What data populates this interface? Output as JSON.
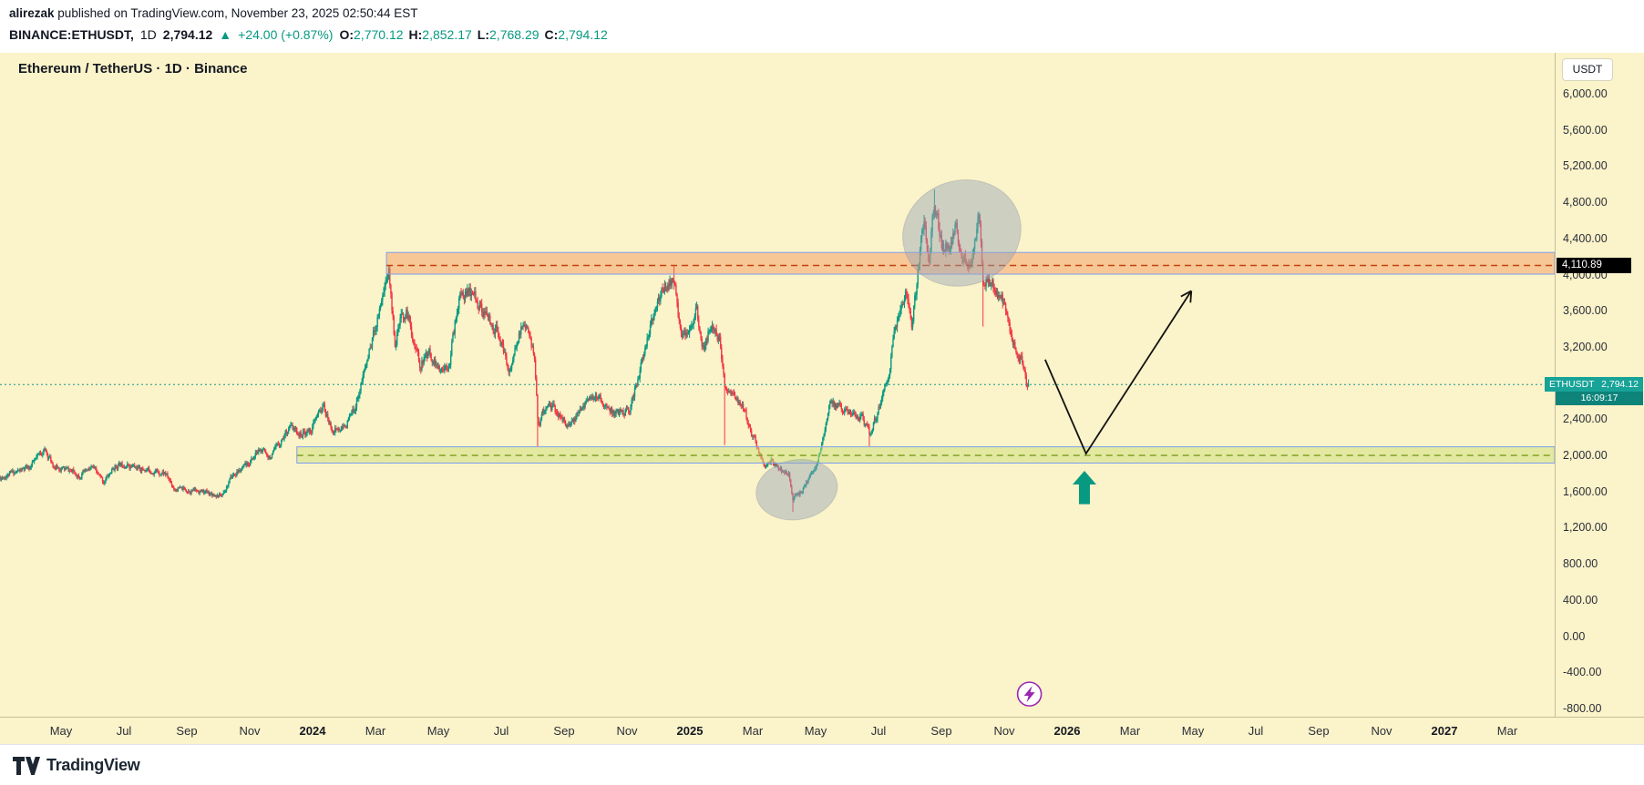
{
  "publish_bar": {
    "author": "alirezak",
    "rest": " published on TradingView.com, November 23, 2025 02:50:44 EST"
  },
  "symbol_bar": {
    "symbol": "BINANCE:ETHUSDT,",
    "interval": "1D",
    "price": "2,794.12",
    "arrow": "▲",
    "change": "+24.00 (+0.87%)",
    "ohlc": [
      {
        "k": "O:",
        "v": "2,770.12"
      },
      {
        "k": "H:",
        "v": "2,852.17"
      },
      {
        "k": "L:",
        "v": "2,768.29"
      },
      {
        "k": "C:",
        "v": "2,794.12"
      }
    ]
  },
  "chart": {
    "title": "Ethereum / TetherUS · 1D · Binance",
    "unit_button": "USDT",
    "resistance_label": "4,110.89",
    "price_label": {
      "symbol": "ETHUSDT",
      "price": "2,794.12",
      "countdown": "16:09:17"
    },
    "price_ticks": [
      {
        "v": 6000,
        "label": "6,000.00"
      },
      {
        "v": 5600,
        "label": "5,600.00"
      },
      {
        "v": 5200,
        "label": "5,200.00"
      },
      {
        "v": 4800,
        "label": "4,800.00"
      },
      {
        "v": 4400,
        "label": "4,400.00"
      },
      {
        "v": 4000,
        "label": "4,000.00"
      },
      {
        "v": 3600,
        "label": "3,600.00"
      },
      {
        "v": 3200,
        "label": "3,200.00"
      },
      {
        "v": 2800,
        "label": "2,800.00"
      },
      {
        "v": 2400,
        "label": "2,400.00"
      },
      {
        "v": 2000,
        "label": "2,000.00"
      },
      {
        "v": 1600,
        "label": "1,600.00"
      },
      {
        "v": 1200,
        "label": "1,200.00"
      },
      {
        "v": 800,
        "label": "800.00"
      },
      {
        "v": 400,
        "label": "400.00"
      },
      {
        "v": 0,
        "label": "0.00"
      },
      {
        "v": -400,
        "label": "-400.00"
      },
      {
        "v": -800,
        "label": "-800.00"
      }
    ],
    "time_axis": [
      {
        "label": "May",
        "m": 2
      },
      {
        "label": "Jul",
        "m": 4
      },
      {
        "label": "Sep",
        "m": 6
      },
      {
        "label": "Nov",
        "m": 8
      },
      {
        "label": "2024",
        "m": 10,
        "year": true
      },
      {
        "label": "Mar",
        "m": 12
      },
      {
        "label": "May",
        "m": 14
      },
      {
        "label": "Jul",
        "m": 16
      },
      {
        "label": "Sep",
        "m": 18
      },
      {
        "label": "Nov",
        "m": 20
      },
      {
        "label": "2025",
        "m": 22,
        "year": true
      },
      {
        "label": "Mar",
        "m": 24
      },
      {
        "label": "May",
        "m": 26
      },
      {
        "label": "Jul",
        "m": 28
      },
      {
        "label": "Sep",
        "m": 30
      },
      {
        "label": "Nov",
        "m": 32
      },
      {
        "label": "2026",
        "m": 34,
        "year": true
      },
      {
        "label": "Mar",
        "m": 36
      },
      {
        "label": "May",
        "m": 38
      },
      {
        "label": "Jul",
        "m": 40
      },
      {
        "label": "Sep",
        "m": 42
      },
      {
        "label": "Nov",
        "m": 44
      },
      {
        "label": "2027",
        "m": 46,
        "year": true
      },
      {
        "label": "Mar",
        "m": 48
      }
    ]
  },
  "chart_data": {
    "type": "candlestick",
    "symbol": "ETHUSDT",
    "timeframe": "1D",
    "x_unit": "months since 2023-03",
    "ylim": [
      -800,
      6000
    ],
    "grid": false,
    "seed": 11,
    "price_path_anchors": [
      [
        0,
        1760
      ],
      [
        0.5,
        1820
      ],
      [
        1,
        1870
      ],
      [
        1.45,
        2080
      ],
      [
        1.8,
        1880
      ],
      [
        2.2,
        1850
      ],
      [
        2.6,
        1790
      ],
      [
        3,
        1870
      ],
      [
        3.35,
        1715
      ],
      [
        3.7,
        1880
      ],
      [
        4,
        1920
      ],
      [
        4.45,
        1865
      ],
      [
        4.9,
        1840
      ],
      [
        5.3,
        1820
      ],
      [
        5.6,
        1645
      ],
      [
        6,
        1630
      ],
      [
        6.4,
        1615
      ],
      [
        6.8,
        1585
      ],
      [
        7.1,
        1565
      ],
      [
        7.45,
        1785
      ],
      [
        7.9,
        1890
      ],
      [
        8.3,
        2070
      ],
      [
        8.7,
        1995
      ],
      [
        9.25,
        2330
      ],
      [
        9.6,
        2240
      ],
      [
        9.95,
        2290
      ],
      [
        10.33,
        2560
      ],
      [
        10.6,
        2300
      ],
      [
        10.95,
        2295
      ],
      [
        11.3,
        2490
      ],
      [
        11.65,
        2940
      ],
      [
        11.95,
        3370
      ],
      [
        12.25,
        3840
      ],
      [
        12.42,
        4060
      ],
      [
        12.62,
        3270
      ],
      [
        12.8,
        3500
      ],
      [
        13,
        3590
      ],
      [
        13.42,
        3010
      ],
      [
        13.7,
        3150
      ],
      [
        13.97,
        3000
      ],
      [
        14.05,
        2910
      ],
      [
        14.35,
        3060
      ],
      [
        14.65,
        3740
      ],
      [
        14.85,
        3810
      ],
      [
        15.1,
        3790
      ],
      [
        15.3,
        3680
      ],
      [
        15.6,
        3490
      ],
      [
        15.9,
        3370
      ],
      [
        16.25,
        2930
      ],
      [
        16.7,
        3470
      ],
      [
        17.05,
        3140
      ],
      [
        17.17,
        2360
      ],
      [
        17.5,
        2590
      ],
      [
        17.8,
        2480
      ],
      [
        18.2,
        2310
      ],
      [
        18.6,
        2590
      ],
      [
        19.1,
        2640
      ],
      [
        19.6,
        2470
      ],
      [
        20.1,
        2520
      ],
      [
        20.5,
        3080
      ],
      [
        20.9,
        3620
      ],
      [
        21.2,
        3890
      ],
      [
        21.5,
        3960
      ],
      [
        21.72,
        3330
      ],
      [
        21.95,
        3360
      ],
      [
        22.2,
        3640
      ],
      [
        22.42,
        3190
      ],
      [
        22.65,
        3420
      ],
      [
        22.95,
        3290
      ],
      [
        23.1,
        2770
      ],
      [
        23.4,
        2690
      ],
      [
        23.75,
        2500
      ],
      [
        23.97,
        2240
      ],
      [
        24.1,
        2140
      ],
      [
        24.35,
        1890
      ],
      [
        24.6,
        1950
      ],
      [
        24.9,
        1860
      ],
      [
        25.15,
        1810
      ],
      [
        25.27,
        1545
      ],
      [
        25.55,
        1600
      ],
      [
        25.85,
        1790
      ],
      [
        26,
        1825
      ],
      [
        26.3,
        2340
      ],
      [
        26.47,
        2590
      ],
      [
        26.8,
        2540
      ],
      [
        27.2,
        2460
      ],
      [
        27.5,
        2420
      ],
      [
        27.72,
        2240
      ],
      [
        27.97,
        2470
      ],
      [
        28.3,
        2890
      ],
      [
        28.62,
        3570
      ],
      [
        28.9,
        3840
      ],
      [
        29.07,
        3420
      ],
      [
        29.45,
        4680
      ],
      [
        29.6,
        4170
      ],
      [
        29.78,
        4850
      ],
      [
        30,
        4360
      ],
      [
        30.2,
        4310
      ],
      [
        30.45,
        4540
      ],
      [
        30.7,
        4170
      ],
      [
        30.95,
        4160
      ],
      [
        31.2,
        4680
      ],
      [
        31.33,
        3870
      ],
      [
        31.5,
        4010
      ],
      [
        31.72,
        3860
      ],
      [
        31.95,
        3710
      ],
      [
        32.2,
        3360
      ],
      [
        32.45,
        3160
      ],
      [
        32.6,
        3010
      ],
      [
        32.72,
        2760
      ],
      [
        32.77,
        2794
      ]
    ],
    "special_wicks": [
      [
        12.42,
        4093
      ],
      [
        17.17,
        2110
      ],
      [
        21.5,
        4107
      ],
      [
        23.1,
        2125
      ],
      [
        25.27,
        1385
      ],
      [
        27.72,
        2111
      ],
      [
        29.78,
        4953
      ],
      [
        31.33,
        3435
      ]
    ],
    "last": {
      "m": 32.77,
      "o": 2770.12,
      "h": 2852.17,
      "l": 2768.29,
      "c": 2794.12
    },
    "levels": {
      "current_price_line": 2794.12,
      "resistance_line": 4110.89,
      "resistance_zone": {
        "start_m": 12.35,
        "top": 4255,
        "bottom": 4015
      },
      "support_zone": {
        "start_m": 9.5,
        "top": 2105,
        "bottom": 1925,
        "mid": 2010
      }
    },
    "annotations": {
      "ellipses": [
        {
          "cm": 30.65,
          "cp": 4470,
          "rm": 1.9,
          "rp": 580,
          "rot": -18
        },
        {
          "cm": 25.4,
          "cp": 1630,
          "rm": 1.3,
          "rp": 330,
          "rot": -10
        }
      ],
      "zigzag_arrow": [
        [
          33.3,
          3070
        ],
        [
          34.6,
          2030
        ],
        [
          37.95,
          3830
        ]
      ],
      "up_arrow": {
        "m": 34.55,
        "tip_price": 1840,
        "base_price": 1470
      },
      "bolt_icon": {
        "m": 32.8,
        "price": -630
      }
    }
  },
  "footer": {
    "brand": "TradingView"
  },
  "colors": {
    "chart_bg": "#fbf3c9",
    "candle_up": "#089981",
    "candle_down": "#f23645",
    "change_green": "#089981",
    "price_line": "#109a8e",
    "price_label_bg": "#17a398",
    "countdown_bg": "#0d837a",
    "resistance_label_bg": "#000000",
    "resistance_zone_fill": "rgba(242,139,80,0.42)",
    "resistance_mid_line": "#c2410c",
    "support_zone_fill": "rgba(203,224,119,0.5)",
    "support_mid_line": "#7a9a1d",
    "zone_border": "#7e9ff0",
    "ellipse_fill": "rgba(148,163,184,0.45)",
    "projection_arrow": "#111111",
    "up_arrow": "#089981",
    "bolt_purple": "#9c27b0"
  }
}
